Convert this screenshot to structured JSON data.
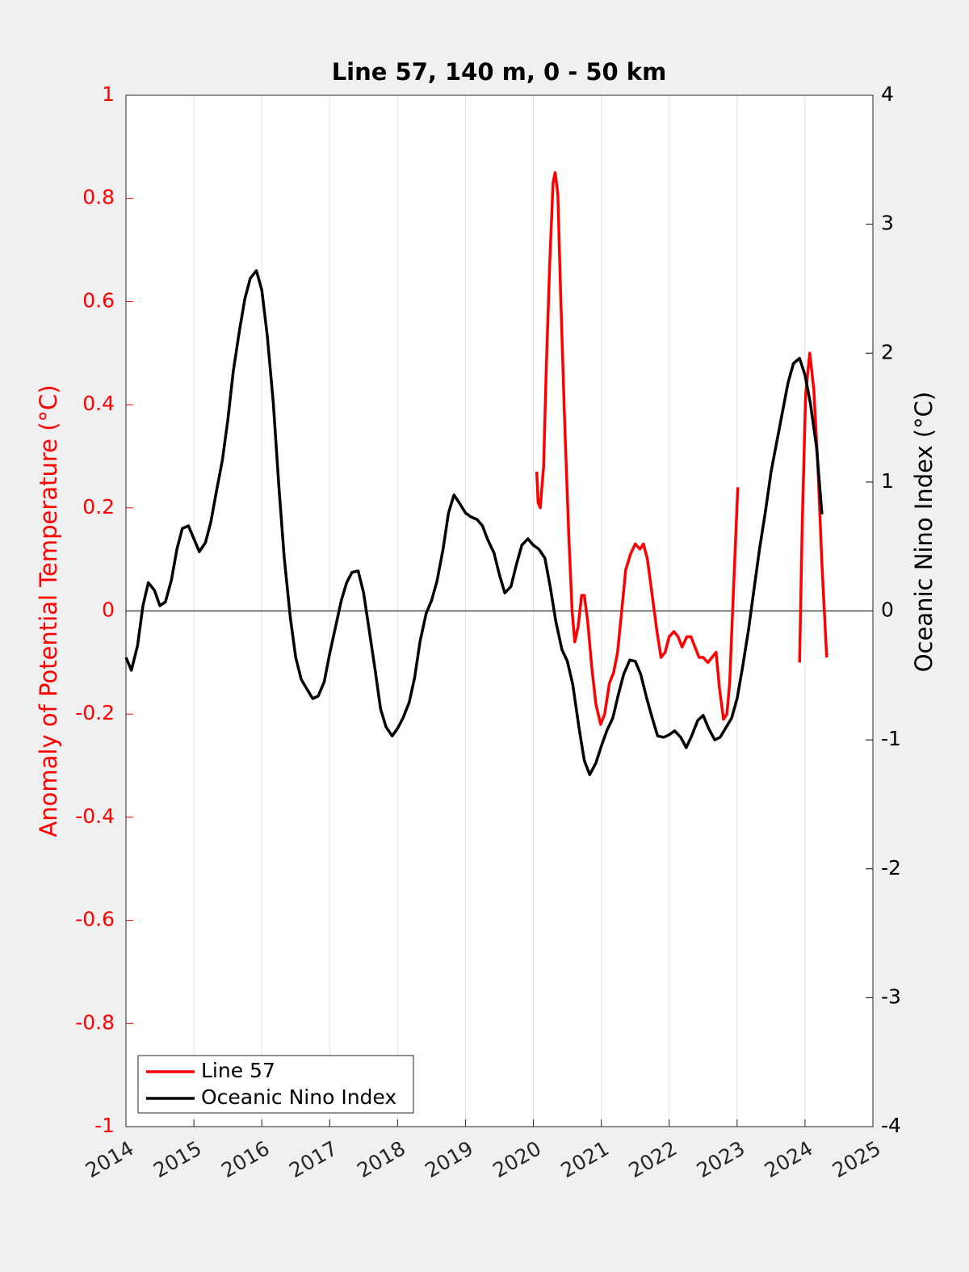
{
  "chart_data": {
    "type": "line",
    "title": "Line 57, 140 m, 0 - 50 km",
    "y_label": "Anomaly of Potential Temperature (°C)",
    "y2_label": "Oceanic Nino Index (°C)",
    "xlim": [
      2014,
      2025
    ],
    "xticks": [
      2014,
      2015,
      2016,
      2017,
      2018,
      2019,
      2020,
      2021,
      2022,
      2023,
      2024,
      2025
    ],
    "ylim": [
      -1,
      1
    ],
    "yticks": [
      -1,
      -0.8,
      -0.6,
      -0.4,
      -0.2,
      0,
      0.2,
      0.4,
      0.6,
      0.8,
      1
    ],
    "y2lim": [
      -4,
      4
    ],
    "y2ticks": [
      -4,
      -3,
      -2,
      -1,
      0,
      1,
      2,
      3,
      4
    ],
    "y_color": "#ff0000",
    "y2_color": "#000000",
    "x_grid": true,
    "reference_line": 0,
    "legend": "lower left",
    "series": [
      {
        "name": "Line 57",
        "color": "#ff0000",
        "axis": "y",
        "x": [
          2020.05,
          2020.07,
          2020.1,
          2020.15,
          2020.19,
          2020.24,
          2020.29,
          2020.32,
          2020.36,
          2020.4,
          2020.46,
          2020.52,
          2020.57,
          2020.61,
          2020.66,
          2020.71,
          2020.75,
          2020.8,
          2020.86,
          2020.92,
          2020.99,
          2021.05,
          2021.12,
          2021.18,
          2021.24,
          2021.3,
          2021.36,
          2021.43,
          2021.5,
          2021.57,
          2021.62,
          2021.68,
          2021.75,
          2021.82,
          2021.88,
          2021.94,
          2022.0,
          2022.07,
          2022.13,
          2022.19,
          2022.26,
          2022.32,
          2022.38,
          2022.44,
          2022.5,
          2022.57,
          2022.63,
          2022.69,
          2022.74,
          2022.8,
          2022.85,
          2022.89,
          2022.94,
          2023.01,
          2023.5,
          2023.92,
          2023.96,
          2024.01,
          2024.07,
          2024.13,
          2024.19,
          2024.25,
          2024.32
        ],
        "values": [
          0.27,
          0.21,
          0.2,
          0.28,
          0.47,
          0.67,
          0.83,
          0.85,
          0.81,
          0.62,
          0.37,
          0.15,
          0.0,
          -0.06,
          -0.03,
          0.03,
          0.03,
          -0.02,
          -0.11,
          -0.18,
          -0.22,
          -0.2,
          -0.14,
          -0.12,
          -0.08,
          0.0,
          0.08,
          0.11,
          0.13,
          0.12,
          0.13,
          0.1,
          0.03,
          -0.04,
          -0.09,
          -0.08,
          -0.05,
          -0.04,
          -0.05,
          -0.07,
          -0.05,
          -0.05,
          -0.07,
          -0.09,
          -0.09,
          -0.1,
          -0.09,
          -0.08,
          -0.15,
          -0.21,
          -0.2,
          -0.14,
          0.02,
          0.24,
          null,
          -0.1,
          0.17,
          0.42,
          0.5,
          0.43,
          0.28,
          0.09,
          -0.09
        ]
      },
      {
        "name": "Oceanic Nino Index",
        "color": "#000000",
        "axis": "y2",
        "x": [
          2014.0,
          2014.08,
          2014.17,
          2014.25,
          2014.33,
          2014.42,
          2014.5,
          2014.58,
          2014.67,
          2014.75,
          2014.83,
          2014.92,
          2015.0,
          2015.08,
          2015.17,
          2015.25,
          2015.33,
          2015.42,
          2015.5,
          2015.58,
          2015.67,
          2015.75,
          2015.83,
          2015.92,
          2016.0,
          2016.08,
          2016.17,
          2016.25,
          2016.33,
          2016.42,
          2016.5,
          2016.58,
          2016.67,
          2016.75,
          2016.83,
          2016.92,
          2017.0,
          2017.08,
          2017.17,
          2017.25,
          2017.33,
          2017.42,
          2017.5,
          2017.58,
          2017.67,
          2017.75,
          2017.83,
          2017.92,
          2018.0,
          2018.08,
          2018.17,
          2018.25,
          2018.33,
          2018.42,
          2018.5,
          2018.58,
          2018.67,
          2018.75,
          2018.83,
          2018.92,
          2019.0,
          2019.08,
          2019.17,
          2019.25,
          2019.33,
          2019.42,
          2019.5,
          2019.58,
          2019.67,
          2019.75,
          2019.83,
          2019.92,
          2020.0,
          2020.08,
          2020.17,
          2020.25,
          2020.33,
          2020.42,
          2020.5,
          2020.58,
          2020.67,
          2020.75,
          2020.83,
          2020.92,
          2021.0,
          2021.08,
          2021.17,
          2021.25,
          2021.33,
          2021.42,
          2021.5,
          2021.58,
          2021.67,
          2021.75,
          2021.83,
          2021.92,
          2022.0,
          2022.08,
          2022.17,
          2022.25,
          2022.33,
          2022.42,
          2022.5,
          2022.58,
          2022.67,
          2022.75,
          2022.83,
          2022.92,
          2023.0,
          2023.08,
          2023.17,
          2023.25,
          2023.33,
          2023.42,
          2023.5,
          2023.58,
          2023.67,
          2023.75,
          2023.83,
          2023.92,
          2024.0,
          2024.08,
          2024.17,
          2024.25
        ],
        "values": [
          -0.36,
          -0.46,
          -0.27,
          0.04,
          0.22,
          0.16,
          0.04,
          0.07,
          0.24,
          0.48,
          0.64,
          0.66,
          0.56,
          0.46,
          0.53,
          0.69,
          0.92,
          1.17,
          1.48,
          1.86,
          2.17,
          2.42,
          2.58,
          2.64,
          2.49,
          2.14,
          1.61,
          0.98,
          0.42,
          -0.05,
          -0.36,
          -0.53,
          -0.61,
          -0.68,
          -0.66,
          -0.55,
          -0.33,
          -0.14,
          0.08,
          0.22,
          0.3,
          0.31,
          0.14,
          -0.14,
          -0.46,
          -0.76,
          -0.9,
          -0.97,
          -0.91,
          -0.83,
          -0.71,
          -0.52,
          -0.24,
          -0.02,
          0.08,
          0.23,
          0.48,
          0.76,
          0.9,
          0.83,
          0.76,
          0.73,
          0.71,
          0.66,
          0.55,
          0.45,
          0.28,
          0.14,
          0.19,
          0.36,
          0.51,
          0.56,
          0.51,
          0.48,
          0.41,
          0.18,
          -0.08,
          -0.3,
          -0.39,
          -0.57,
          -0.9,
          -1.16,
          -1.27,
          -1.18,
          -1.05,
          -0.93,
          -0.83,
          -0.65,
          -0.49,
          -0.38,
          -0.39,
          -0.49,
          -0.68,
          -0.83,
          -0.97,
          -0.98,
          -0.96,
          -0.93,
          -0.98,
          -1.06,
          -0.97,
          -0.85,
          -0.81,
          -0.91,
          -1.0,
          -0.98,
          -0.91,
          -0.83,
          -0.68,
          -0.44,
          -0.14,
          0.17,
          0.48,
          0.78,
          1.08,
          1.3,
          1.55,
          1.77,
          1.92,
          1.96,
          1.83,
          1.61,
          1.27,
          0.75
        ]
      }
    ]
  }
}
